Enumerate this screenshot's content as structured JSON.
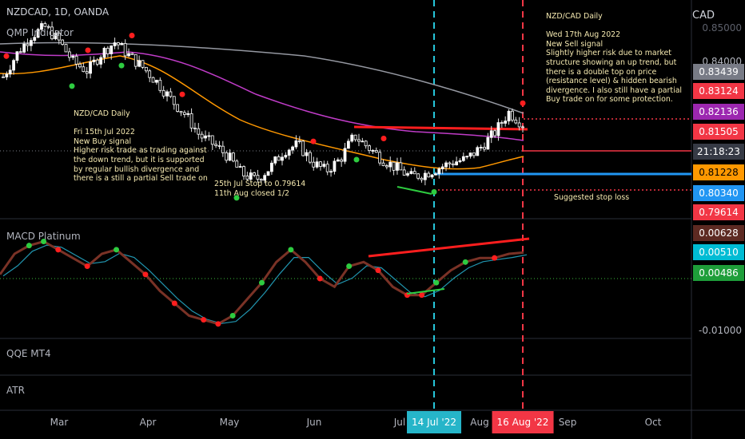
{
  "header": {
    "symbol": "NZDCAD, 1D, OANDA",
    "indicator": "QMP Indicator",
    "currency": "CAD"
  },
  "panes": {
    "macd": "MACD Platinum",
    "qqe": "QQE MT4",
    "atr": "ATR"
  },
  "notes": {
    "left": "NZD/CAD Daily\n\nFri 15th Jul 2022\nNew Buy signal\nHigher risk trade as trading against\nthe down trend, but it is supported\nby regular bullish divergence and\nthere is a still a partial Sell trade on",
    "mid": "25th Jul Stop to 0.79614\n11th Aug closed 1/2",
    "right": "NZD/CAD Daily\n\nWed 17th Aug 2022\nNew Sell signal\nSlightly higher risk due to market\nstructure showing an up trend, but\nthere is a double top on price\n(resistance level) & hidden bearish\ndivergence. I also still have a partial\nBuy trade on for some protection.",
    "stop": "Suggested stop loss"
  },
  "price_labels": [
    {
      "text": "0.83439",
      "bg": "#787b86"
    },
    {
      "text": "0.83124",
      "bg": "#f23645"
    },
    {
      "text": "0.82136",
      "bg": "#9c27b0"
    },
    {
      "text": "0.81505",
      "bg": "#f23645"
    },
    {
      "text": "21:18:23",
      "bg": "#363a45"
    },
    {
      "text": "0.81228",
      "bg": "#ff9800"
    },
    {
      "text": "0.80340",
      "bg": "#2196f3"
    },
    {
      "text": "0.79614",
      "bg": "#f23645"
    }
  ],
  "macd_labels": [
    {
      "text": "0.00628",
      "bg": "#5d2a22"
    },
    {
      "text": "0.00510",
      "bg": "#00bcd4"
    },
    {
      "text": "0.00486",
      "bg": "#1e9e3a"
    }
  ],
  "axis_ticks": {
    "price_top": "0.85000",
    "price_mid": "0.84000",
    "macd_low": "-0.01000"
  },
  "x_axis": {
    "labels": [
      "Mar",
      "Apr",
      "May",
      "Jun",
      "Jul",
      "Aug",
      "Sep",
      "Oct"
    ],
    "flag_a": "14 Jul '22",
    "flag_b": "16 Aug '22"
  },
  "colors": {
    "accent_red": "#f23645",
    "accent_blue": "#2196f3",
    "cyan": "#26c6da",
    "ma_orange": "#ff9800",
    "ma_purple": "#9c27b0",
    "ma_grey": "#787b86"
  },
  "chart_data": {
    "type": "candlestick",
    "x": [
      "Mar",
      "Apr",
      "May",
      "Jun",
      "Jul",
      "Aug",
      "Sep",
      "Oct"
    ],
    "price_levels": {
      "sma_grey": 0.83439,
      "signal_high": 0.83124,
      "ma_purple": 0.82136,
      "entry": 0.81505,
      "ma_orange": 0.81228,
      "support": 0.8034,
      "stop": 0.79614
    },
    "close_path": [
      0.834,
      0.842,
      0.848,
      0.851,
      0.846,
      0.839,
      0.836,
      0.842,
      0.846,
      0.841,
      0.837,
      0.832,
      0.826,
      0.821,
      0.814,
      0.811,
      0.807,
      0.801,
      0.799,
      0.803,
      0.809,
      0.811,
      0.805,
      0.802,
      0.806,
      0.814,
      0.81,
      0.806,
      0.803,
      0.8,
      0.801,
      0.803,
      0.805,
      0.806,
      0.81,
      0.815,
      0.822,
      0.818
    ],
    "macd_path": [
      0.001,
      0.006,
      0.008,
      0.009,
      0.007,
      0.005,
      0.003,
      0.006,
      0.007,
      0.004,
      0.001,
      -0.003,
      -0.006,
      -0.009,
      -0.01,
      -0.011,
      -0.009,
      -0.005,
      -0.001,
      0.004,
      0.007,
      0.004,
      0.0,
      -0.002,
      0.003,
      0.004,
      0.002,
      -0.002,
      -0.004,
      -0.004,
      -0.001,
      0.002,
      0.004,
      0.005,
      0.005,
      0.006,
      0.0063
    ]
  }
}
